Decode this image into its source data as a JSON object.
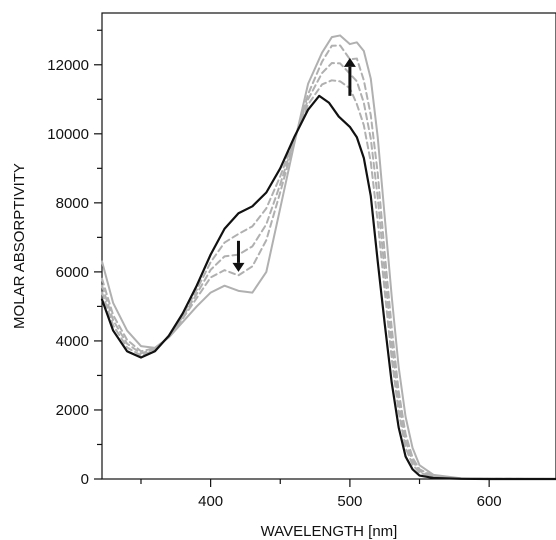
{
  "chart_data": {
    "type": "line",
    "title": "",
    "xlabel": "WAVELENGTH [nm]",
    "ylabel": "MOLAR ABSORPTIVITY",
    "xlim": [
      322,
      648
    ],
    "ylim": [
      0,
      13500
    ],
    "x_ticks": [
      400,
      500,
      600
    ],
    "x_minor_ticks": [
      350,
      450,
      550
    ],
    "y_ticks": [
      0,
      2000,
      4000,
      6000,
      8000,
      10000,
      12000
    ],
    "y_minor_ticks": [
      1000,
      3000,
      5000,
      7000,
      9000,
      11000,
      13000
    ],
    "grid": false,
    "legend": "none",
    "colors": {
      "initial": "#111111",
      "final": "#b0b0b0",
      "intermediate": "#b0b0b0",
      "arrow": "#111111"
    },
    "series": [
      {
        "style": "solid",
        "color": "#111111",
        "points": [
          [
            322,
            5200
          ],
          [
            330,
            4300
          ],
          [
            340,
            3700
          ],
          [
            350,
            3520
          ],
          [
            360,
            3700
          ],
          [
            370,
            4150
          ],
          [
            380,
            4800
          ],
          [
            390,
            5600
          ],
          [
            400,
            6500
          ],
          [
            410,
            7250
          ],
          [
            420,
            7700
          ],
          [
            430,
            7900
          ],
          [
            440,
            8300
          ],
          [
            450,
            9000
          ],
          [
            460,
            9900
          ],
          [
            470,
            10700
          ],
          [
            478,
            11100
          ],
          [
            485,
            10900
          ],
          [
            492,
            10500
          ],
          [
            500,
            10200
          ],
          [
            505,
            9900
          ],
          [
            510,
            9300
          ],
          [
            515,
            8200
          ],
          [
            520,
            6300
          ],
          [
            525,
            4500
          ],
          [
            530,
            2800
          ],
          [
            535,
            1500
          ],
          [
            540,
            650
          ],
          [
            545,
            280
          ],
          [
            550,
            100
          ],
          [
            560,
            30
          ],
          [
            580,
            5
          ],
          [
            600,
            0
          ],
          [
            648,
            0
          ]
        ]
      },
      {
        "style": "dashed",
        "color": "#b0b0b0",
        "points": [
          [
            322,
            5400
          ],
          [
            330,
            4450
          ],
          [
            340,
            3810
          ],
          [
            350,
            3580
          ],
          [
            360,
            3730
          ],
          [
            370,
            4140
          ],
          [
            380,
            4750
          ],
          [
            390,
            5480
          ],
          [
            400,
            6280
          ],
          [
            410,
            6850
          ],
          [
            420,
            7100
          ],
          [
            430,
            7320
          ],
          [
            440,
            7840
          ],
          [
            450,
            8770
          ],
          [
            460,
            9860
          ],
          [
            470,
            10850
          ],
          [
            480,
            11430
          ],
          [
            487,
            11550
          ],
          [
            493,
            11520
          ],
          [
            500,
            11320
          ],
          [
            505,
            10860
          ],
          [
            510,
            10250
          ],
          [
            515,
            9180
          ],
          [
            520,
            7450
          ],
          [
            525,
            5450
          ],
          [
            530,
            3500
          ],
          [
            535,
            1950
          ],
          [
            540,
            900
          ],
          [
            545,
            420
          ],
          [
            550,
            180
          ],
          [
            560,
            55
          ],
          [
            580,
            10
          ],
          [
            600,
            2
          ],
          [
            648,
            0
          ]
        ]
      },
      {
        "style": "dashed",
        "color": "#b0b0b0",
        "points": [
          [
            322,
            5600
          ],
          [
            330,
            4600
          ],
          [
            340,
            3920
          ],
          [
            350,
            3640
          ],
          [
            360,
            3760
          ],
          [
            370,
            4130
          ],
          [
            380,
            4700
          ],
          [
            390,
            5360
          ],
          [
            400,
            6060
          ],
          [
            410,
            6450
          ],
          [
            420,
            6500
          ],
          [
            430,
            6740
          ],
          [
            440,
            7380
          ],
          [
            450,
            8540
          ],
          [
            460,
            9820
          ],
          [
            470,
            11000
          ],
          [
            480,
            11760
          ],
          [
            487,
            12050
          ],
          [
            493,
            12040
          ],
          [
            500,
            11740
          ],
          [
            505,
            11520
          ],
          [
            510,
            10900
          ],
          [
            515,
            9860
          ],
          [
            520,
            8150
          ],
          [
            525,
            6000
          ],
          [
            530,
            3950
          ],
          [
            535,
            2250
          ],
          [
            540,
            1100
          ],
          [
            545,
            520
          ],
          [
            550,
            230
          ],
          [
            560,
            70
          ],
          [
            580,
            13
          ],
          [
            600,
            3
          ],
          [
            648,
            0
          ]
        ]
      },
      {
        "style": "dashed",
        "color": "#b0b0b0",
        "points": [
          [
            322,
            5800
          ],
          [
            330,
            4750
          ],
          [
            340,
            4030
          ],
          [
            350,
            3700
          ],
          [
            360,
            3790
          ],
          [
            370,
            4120
          ],
          [
            380,
            4650
          ],
          [
            390,
            5240
          ],
          [
            400,
            5840
          ],
          [
            410,
            6050
          ],
          [
            420,
            5900
          ],
          [
            430,
            6160
          ],
          [
            440,
            6920
          ],
          [
            450,
            8310
          ],
          [
            460,
            9780
          ],
          [
            470,
            11150
          ],
          [
            480,
            12090
          ],
          [
            487,
            12550
          ],
          [
            493,
            12560
          ],
          [
            500,
            12160
          ],
          [
            505,
            12180
          ],
          [
            510,
            11550
          ],
          [
            515,
            10540
          ],
          [
            520,
            8850
          ],
          [
            525,
            6550
          ],
          [
            530,
            4400
          ],
          [
            535,
            2550
          ],
          [
            540,
            1300
          ],
          [
            545,
            620
          ],
          [
            550,
            280
          ],
          [
            560,
            85
          ],
          [
            580,
            16
          ],
          [
            600,
            4
          ],
          [
            648,
            0
          ]
        ]
      },
      {
        "style": "solid",
        "color": "#b0b0b0",
        "points": [
          [
            322,
            6300
          ],
          [
            330,
            5100
          ],
          [
            340,
            4300
          ],
          [
            350,
            3850
          ],
          [
            360,
            3800
          ],
          [
            370,
            4100
          ],
          [
            380,
            4550
          ],
          [
            390,
            5000
          ],
          [
            400,
            5400
          ],
          [
            410,
            5600
          ],
          [
            420,
            5450
          ],
          [
            430,
            5400
          ],
          [
            440,
            6000
          ],
          [
            450,
            7850
          ],
          [
            460,
            9700
          ],
          [
            470,
            11450
          ],
          [
            480,
            12350
          ],
          [
            487,
            12800
          ],
          [
            493,
            12850
          ],
          [
            500,
            12600
          ],
          [
            505,
            12650
          ],
          [
            510,
            12400
          ],
          [
            515,
            11600
          ],
          [
            520,
            9900
          ],
          [
            525,
            7600
          ],
          [
            530,
            5300
          ],
          [
            535,
            3250
          ],
          [
            540,
            1800
          ],
          [
            545,
            900
          ],
          [
            550,
            400
          ],
          [
            560,
            120
          ],
          [
            580,
            20
          ],
          [
            600,
            5
          ],
          [
            648,
            0
          ]
        ]
      }
    ],
    "annotations": [
      {
        "type": "arrow",
        "direction": "down",
        "x": 420,
        "y_from": 6900,
        "y_to": 6000
      },
      {
        "type": "arrow",
        "direction": "up",
        "x": 500,
        "y_from": 11100,
        "y_to": 12200
      }
    ]
  }
}
